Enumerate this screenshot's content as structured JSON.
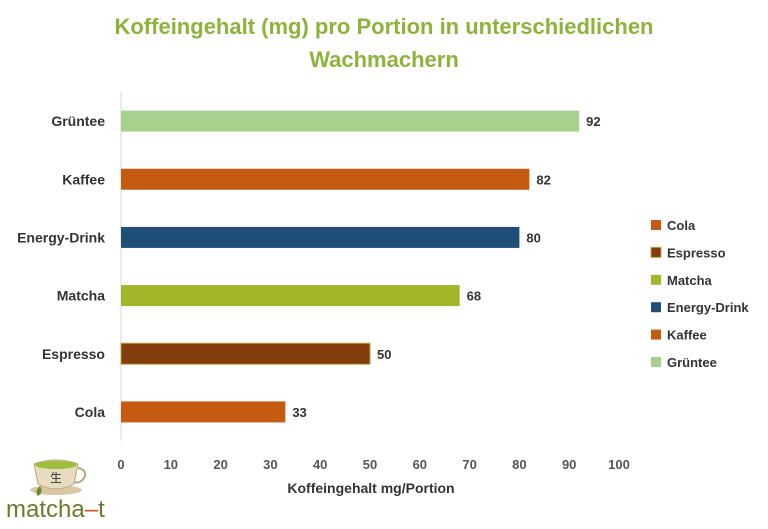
{
  "title_line1": "Koffeingehalt (mg) pro Portion in unterschiedlichen",
  "title_line2": "Wachmachern",
  "chart_data": {
    "type": "bar",
    "orientation": "horizontal",
    "categories": [
      "Grüntee",
      "Kaffee",
      "Energy-Drink",
      "Matcha",
      "Espresso",
      "Cola"
    ],
    "values": [
      92,
      82,
      80,
      68,
      50,
      33
    ],
    "colors": [
      "#a9d18e",
      "#c55a11",
      "#1f4e79",
      "#a5b52a",
      "#843c0c",
      "#c55a11"
    ],
    "xlabel": "Koffeingehalt mg/Portion",
    "xlim": [
      0,
      100
    ],
    "xticks": [
      0,
      10,
      20,
      30,
      40,
      50,
      60,
      70,
      80,
      90,
      100
    ],
    "legend_position": "right",
    "legend": [
      {
        "name": "Cola",
        "color": "#c55a11"
      },
      {
        "name": "Espresso",
        "color": "#843c0c"
      },
      {
        "name": "Matcha",
        "color": "#a5b52a"
      },
      {
        "name": "Energy-Drink",
        "color": "#1f4e79"
      },
      {
        "name": "Kaffee",
        "color": "#c55a11"
      },
      {
        "name": "Grüntee",
        "color": "#a9d18e"
      }
    ]
  },
  "logo": {
    "text_part1": "matcha",
    "text_dash": "–",
    "text_part2": "t",
    "kanji": "生"
  }
}
